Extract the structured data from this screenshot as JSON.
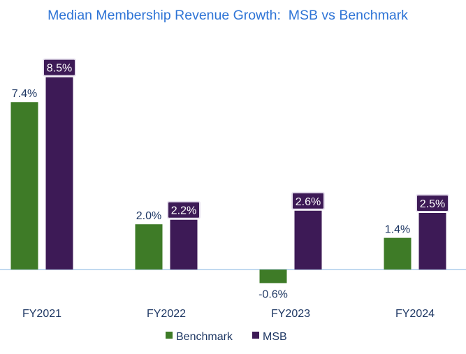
{
  "chart_data": {
    "type": "bar",
    "title": "Median Membership Revenue Growth:  MSB vs Benchmark",
    "categories": [
      "FY2021",
      "FY2022",
      "FY2023",
      "FY2024"
    ],
    "series": [
      {
        "name": "Benchmark",
        "values": [
          7.4,
          2.0,
          -0.6,
          1.4
        ],
        "labels": [
          "7.4%",
          "2.0%",
          "-0.6%",
          "1.4%"
        ],
        "color": "#3e7b27"
      },
      {
        "name": "MSB",
        "values": [
          8.5,
          2.2,
          2.6,
          2.5
        ],
        "labels": [
          "8.5%",
          "2.2%",
          "2.6%",
          "2.5%"
        ],
        "color": "#3d1a56"
      }
    ],
    "xlabel": "",
    "ylabel": "",
    "ylim": [
      -0.6,
      8.5
    ],
    "grid": false,
    "legend_position": "bottom"
  },
  "colors": {
    "title": "#2e74d6",
    "text": "#1f3864",
    "axis": "#9dc3e6",
    "label_box_border": "#e9e3f0"
  }
}
